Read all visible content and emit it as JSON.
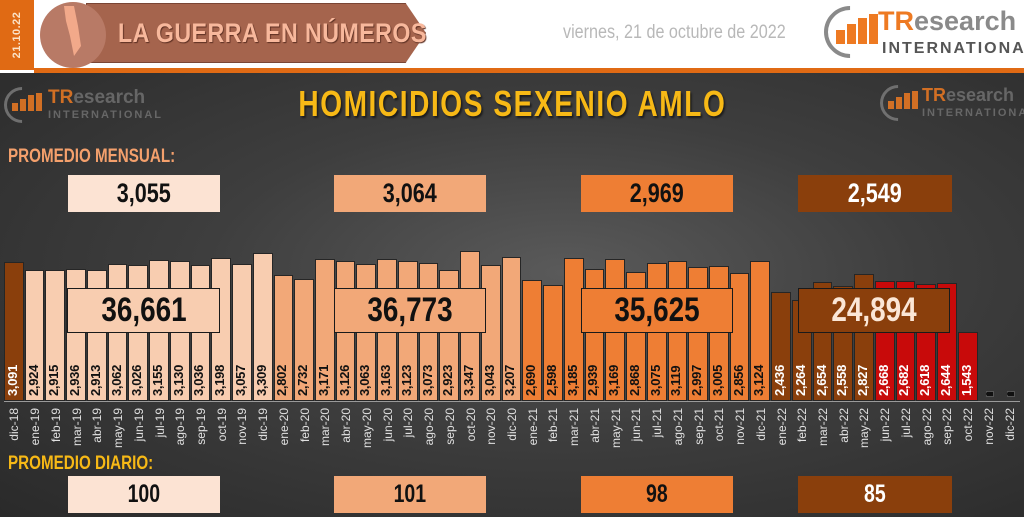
{
  "header": {
    "date_code": "21.10.22",
    "banner_title": "LA GUERRA EN NÚMEROS",
    "date_text": "viernes, 21 de octubre de 2022",
    "logo": {
      "brand_accent": "TR",
      "brand_rest": "esearch",
      "subtitle": "INTERNATIONAL"
    }
  },
  "chart_title": "HOMICIDIOS SEXENIO AMLO",
  "monthly_avg_label": "PROMEDIO MENSUAL:",
  "daily_avg_label": "PROMEDIO DIARIO:",
  "colors": {
    "y2019": "#f8cdb0",
    "y2020": "#f2a878",
    "y2021": "#ee7e34",
    "y2022": "#8a3f0c",
    "y2022_red": "#c80a0a",
    "dic18": "#8a3f0c",
    "title_yellow": "#f7b916",
    "section_orange": "#f4a06c",
    "header_orange": "#e06a14"
  },
  "periods": [
    {
      "year": "2019",
      "monthly_avg": "3,055",
      "daily_avg": "100",
      "total": "36,661",
      "box_bg": "#fce3d3",
      "text_color": "#111111"
    },
    {
      "year": "2020",
      "monthly_avg": "3,064",
      "daily_avg": "101",
      "total": "36,773",
      "box_bg": "#f2a878",
      "text_color": "#111111"
    },
    {
      "year": "2021",
      "monthly_avg": "2,969",
      "daily_avg": "98",
      "total": "35,625",
      "box_bg": "#ee7e34",
      "text_color": "#111111"
    },
    {
      "year": "2022",
      "monthly_avg": "2,549",
      "daily_avg": "85",
      "total": "24,894",
      "box_bg": "#8a3f0c",
      "text_color": "#ffffff"
    }
  ],
  "chart_data": {
    "type": "bar",
    "title": "HOMICIDIOS SEXENIO AMLO",
    "xlabel": "",
    "ylabel": "",
    "grid": false,
    "categories": [
      "dic-18",
      "ene-19",
      "feb-19",
      "mar-19",
      "abr-19",
      "may-19",
      "jun-19",
      "jul-19",
      "ago-19",
      "sep-19",
      "oct-19",
      "nov-19",
      "dic-19",
      "ene-20",
      "feb-20",
      "mar-20",
      "abr-20",
      "may-20",
      "jun-20",
      "jul-20",
      "ago-20",
      "sep-20",
      "oct-20",
      "nov-20",
      "dic-20",
      "ene-21",
      "feb-21",
      "mar-21",
      "abr-21",
      "may-21",
      "jun-21",
      "jul-21",
      "ago-21",
      "sep-21",
      "oct-21",
      "nov-21",
      "dic-21",
      "ene-22",
      "feb-22",
      "mar-22",
      "abr-22",
      "may-22",
      "jun-22",
      "jul-22",
      "ago-22",
      "sep-22",
      "oct-22",
      "nov-22",
      "dic-22"
    ],
    "values": [
      3091,
      2924,
      2915,
      2936,
      2913,
      3062,
      3026,
      3155,
      3130,
      3036,
      3198,
      3057,
      3309,
      2802,
      2732,
      3171,
      3126,
      3063,
      3163,
      3123,
      3073,
      2923,
      3347,
      3043,
      3207,
      2690,
      2598,
      3185,
      2939,
      3169,
      2868,
      3075,
      3119,
      2997,
      3005,
      2856,
      3124,
      2436,
      2264,
      2654,
      2558,
      2827,
      2668,
      2682,
      2618,
      2644,
      1543,
      0,
      0
    ],
    "labels": [
      "3,091",
      "2,924",
      "2,915",
      "2,936",
      "2,913",
      "3,062",
      "3,026",
      "3,155",
      "3,130",
      "3,036",
      "3,198",
      "3,057",
      "3,309",
      "2,802",
      "2,732",
      "3,171",
      "3,126",
      "3,063",
      "3,163",
      "3,123",
      "3,073",
      "2,923",
      "3,347",
      "3,043",
      "3,207",
      "2,690",
      "2,598",
      "3,185",
      "2,939",
      "3,169",
      "2,868",
      "3,075",
      "3,119",
      "2,997",
      "3,005",
      "2,856",
      "3,124",
      "2,436",
      "2,264",
      "2,654",
      "2,558",
      "2,827",
      "2,668",
      "2,682",
      "2,618",
      "2,644",
      "1,543",
      "0",
      "0"
    ],
    "annual_totals": [
      {
        "year": "2019",
        "total": 36661,
        "monthly_avg": 3055,
        "daily_avg": 100
      },
      {
        "year": "2020",
        "total": 36773,
        "monthly_avg": 3064,
        "daily_avg": 101
      },
      {
        "year": "2021",
        "total": 35625,
        "monthly_avg": 2969,
        "daily_avg": 98
      },
      {
        "year": "2022",
        "total": 24894,
        "monthly_avg": 2549,
        "daily_avg": 85
      }
    ]
  }
}
